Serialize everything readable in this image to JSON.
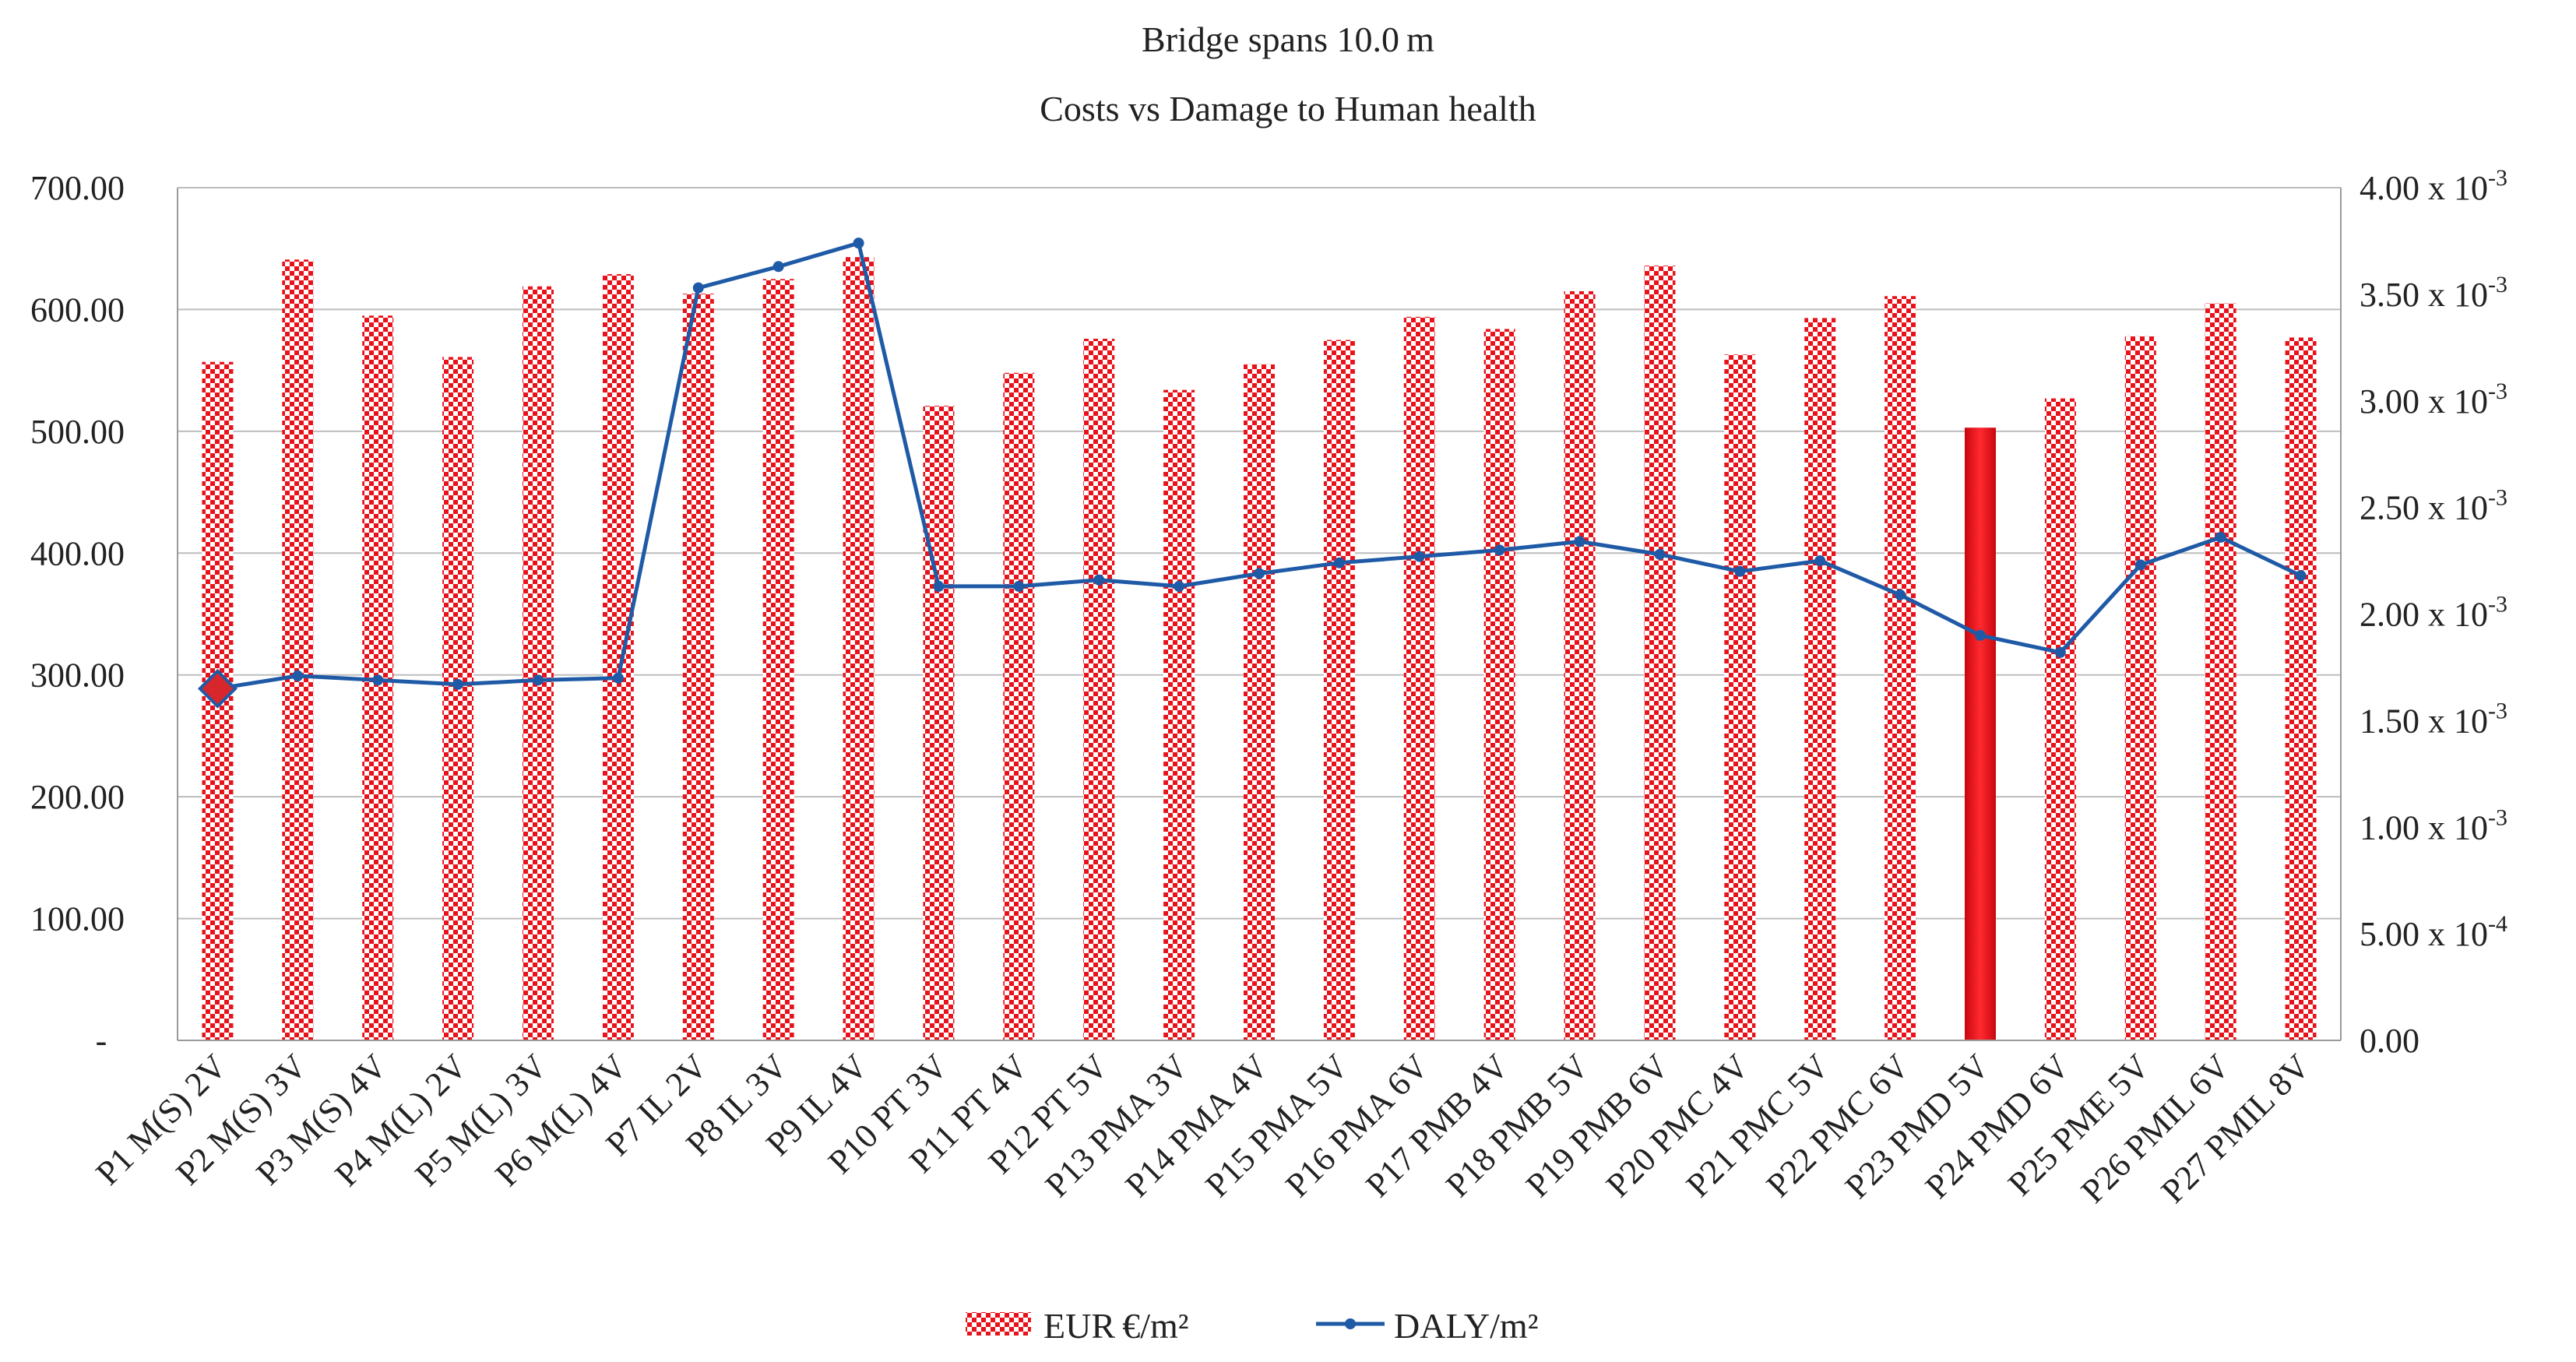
{
  "chart_data": {
    "type": "bar+line",
    "title": "Bridge spans 10.0 m",
    "subtitle": "Costs vs Damage to Human health",
    "categories": [
      "P1 M(S) 2V",
      "P2 M(S) 3V",
      "P3 M(S) 4V",
      "P4 M(L) 2V",
      "P5 M(L) 3V",
      "P6 M(L) 4V",
      "P7 IL 2V",
      "P8 IL 3V",
      "P9 IL 4V",
      "P10 PT 3V",
      "P11 PT 4V",
      "P12 PT 5V",
      "P13 PMA 3V",
      "P14 PMA 4V",
      "P15 PMA 5V",
      "P16 PMA 6V",
      "P17 PMB 4V",
      "P18 PMB 5V",
      "P19 PMB 6V",
      "P20 PMC 4V",
      "P21 PMC 5V",
      "P22 PMC 6V",
      "P23 PMD 5V",
      "P24 PMD 6V",
      "P25 PME 5V",
      "P26 PMIL 6V",
      "P27 PMIL 8V"
    ],
    "series": [
      {
        "name": "EUR €/m²",
        "kind": "bar",
        "axis": "left",
        "color": "#e8121a",
        "highlight_index": 22,
        "values": [
          557,
          641,
          595,
          561,
          619,
          629,
          613,
          625,
          643,
          521,
          548,
          576,
          534,
          555,
          575,
          594,
          584,
          615,
          636,
          563,
          593,
          611,
          503,
          527,
          578,
          605,
          577
        ]
      },
      {
        "name": "DALY/m²",
        "kind": "line",
        "axis": "right",
        "color": "#1f5aa6",
        "highlight_index": 0,
        "values": [
          0.00165,
          0.00171,
          0.00169,
          0.00167,
          0.00169,
          0.0017,
          0.00353,
          0.00363,
          0.00374,
          0.00213,
          0.00213,
          0.00216,
          0.00213,
          0.00219,
          0.00224,
          0.00227,
          0.0023,
          0.00234,
          0.00228,
          0.0022,
          0.00225,
          0.00209,
          0.0019,
          0.00182,
          0.00223,
          0.00236,
          0.00218
        ]
      }
    ],
    "left_axis": {
      "ylim": [
        0,
        700
      ],
      "ticks": [
        0,
        100,
        200,
        300,
        400,
        500,
        600,
        700
      ],
      "tick_labels": [
        "-",
        "100.00",
        "200.00",
        "300.00",
        "400.00",
        "500.00",
        "600.00",
        "700.00"
      ]
    },
    "right_axis": {
      "ylim": [
        0,
        0.004
      ],
      "ticks": [
        0,
        0.0005,
        0.001,
        0.0015,
        0.002,
        0.0025,
        0.003,
        0.0035,
        0.004
      ],
      "tick_labels": [
        {
          "mant": "0.00",
          "exp": ""
        },
        {
          "mant": "5.00",
          "exp": "-4"
        },
        {
          "mant": "1.00",
          "exp": "-3"
        },
        {
          "mant": "1.50",
          "exp": "-3"
        },
        {
          "mant": "2.00",
          "exp": "-3"
        },
        {
          "mant": "2.50",
          "exp": "-3"
        },
        {
          "mant": "3.00",
          "exp": "-3"
        },
        {
          "mant": "3.50",
          "exp": "-3"
        },
        {
          "mant": "4.00",
          "exp": "-3"
        }
      ]
    },
    "grid": true,
    "legend": "bottom-center"
  }
}
